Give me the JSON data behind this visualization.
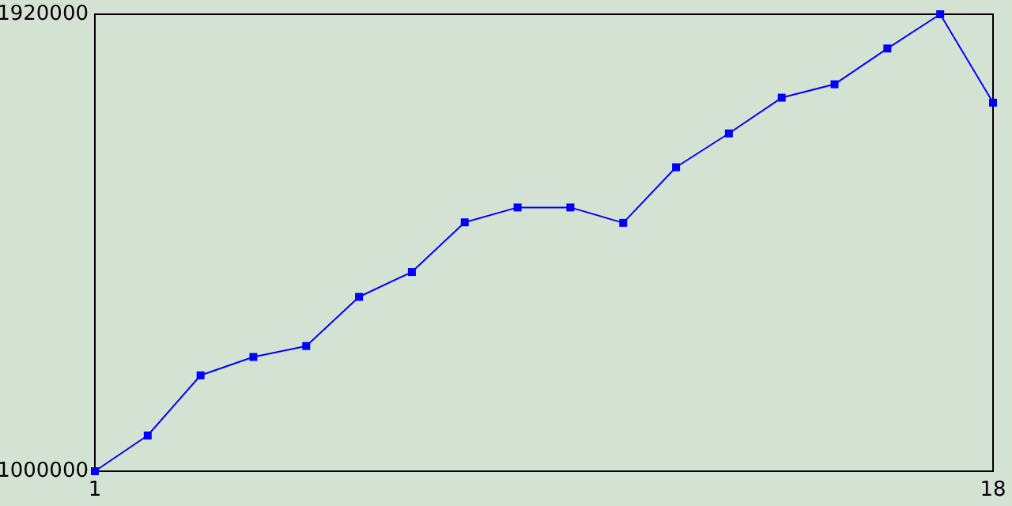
{
  "chart_data": {
    "type": "line",
    "x": [
      1,
      2,
      3,
      4,
      5,
      6,
      7,
      8,
      9,
      10,
      11,
      12,
      13,
      14,
      15,
      16,
      17,
      18
    ],
    "series": [
      {
        "color": "#0000ff",
        "values": [
          1000000,
          1072000,
          1193000,
          1230000,
          1252000,
          1351000,
          1401000,
          1501000,
          1531000,
          1531000,
          1500000,
          1612000,
          1680000,
          1752000,
          1779000,
          1851000,
          1920000,
          1742000
        ]
      }
    ],
    "xlim": [
      1,
      18
    ],
    "ylim": [
      1000000,
      1920000
    ],
    "xticks": [
      1,
      18
    ],
    "yticks": [
      1000000,
      1920000
    ],
    "grid": false,
    "legend": false,
    "marker": "square",
    "line_style": "solid"
  }
}
